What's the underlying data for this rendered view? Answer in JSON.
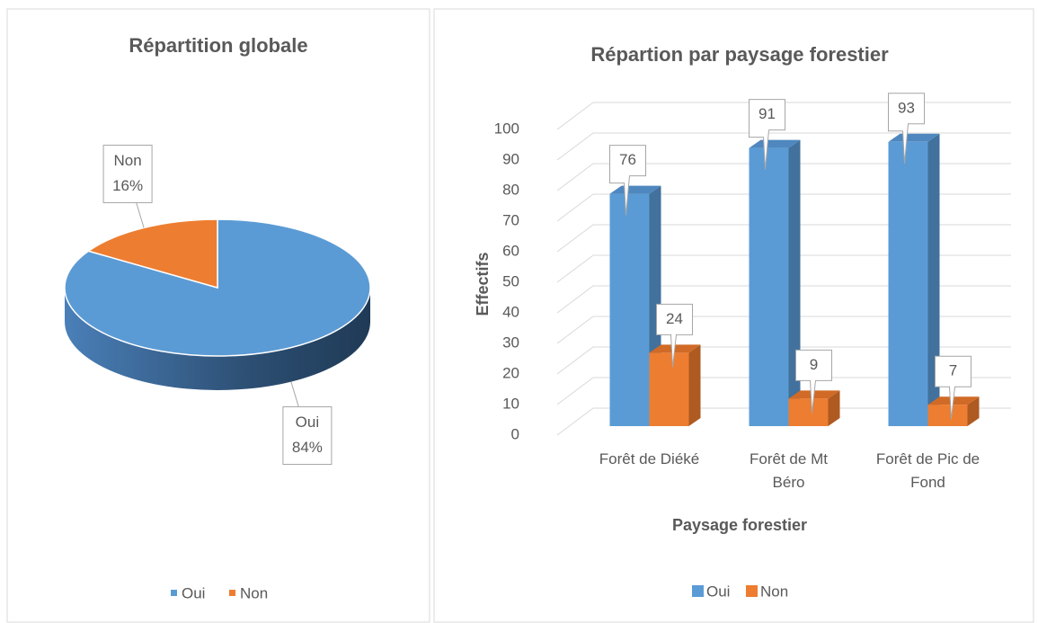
{
  "chart_data": [
    {
      "type": "pie",
      "title": "Répartition globale",
      "categories": [
        "Oui",
        "Non"
      ],
      "values": [
        84,
        16
      ],
      "value_labels": [
        "84%",
        "16%"
      ],
      "colors": [
        "#5b9bd5",
        "#ed7d31"
      ],
      "legend": "bottom"
    },
    {
      "type": "bar3d",
      "title": "Répartion par paysage forestier",
      "xlabel": "Paysage forestier",
      "ylabel": "Effectifs",
      "categories": [
        "Forêt de Diéké",
        "Forêt de Mt Béro",
        "Forêt de Pic de Fond"
      ],
      "series": [
        {
          "name": "Oui",
          "color": "#5b9bd5",
          "values": [
            76,
            91,
            93
          ]
        },
        {
          "name": "Non",
          "color": "#ed7d31",
          "values": [
            24,
            9,
            7
          ]
        }
      ],
      "ylim": [
        0,
        100
      ],
      "yticks": [
        0,
        10,
        20,
        30,
        40,
        50,
        60,
        70,
        80,
        90,
        100
      ],
      "grid": true,
      "legend": "bottom"
    }
  ]
}
